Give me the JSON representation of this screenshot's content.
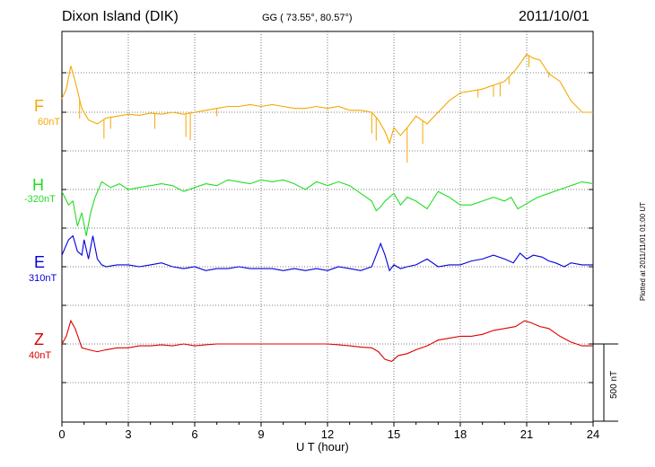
{
  "header": {
    "station": "Dixon Island (DIK)",
    "coords": "GG ( 73.55°,  80.57°)",
    "date": "2011/10/01"
  },
  "footer": {
    "plotted": "Plotted at 2011/11/01 01:00 UT",
    "scale_label": "500 nT"
  },
  "chart_data": {
    "type": "line",
    "xlabel": "U T (hour)",
    "xlim": [
      0,
      24
    ],
    "xticks": [
      "0",
      "3",
      "6",
      "9",
      "12",
      "15",
      "18",
      "21",
      "24"
    ],
    "grid": true,
    "scale_bar_nT": 500,
    "series": [
      {
        "name": "F",
        "baseline_label": "60nT",
        "color": "#f4a800",
        "points": [
          [
            0,
            35
          ],
          [
            0.2,
            60
          ],
          [
            0.4,
            120
          ],
          [
            0.6,
            80
          ],
          [
            0.9,
            10
          ],
          [
            1.2,
            -20
          ],
          [
            1.6,
            -30
          ],
          [
            2,
            -15
          ],
          [
            2.5,
            -10
          ],
          [
            3,
            -5
          ],
          [
            3.5,
            -8
          ],
          [
            4,
            -2
          ],
          [
            4.5,
            -5
          ],
          [
            5,
            0
          ],
          [
            5.5,
            -5
          ],
          [
            6,
            0
          ],
          [
            6.5,
            5
          ],
          [
            7,
            10
          ],
          [
            7.5,
            15
          ],
          [
            8,
            15
          ],
          [
            8.5,
            20
          ],
          [
            9,
            15
          ],
          [
            9.5,
            20
          ],
          [
            10,
            15
          ],
          [
            10.5,
            10
          ],
          [
            11,
            10
          ],
          [
            11.5,
            15
          ],
          [
            12,
            10
          ],
          [
            12.5,
            15
          ],
          [
            13,
            5
          ],
          [
            13.5,
            5
          ],
          [
            14,
            0
          ],
          [
            14.3,
            -20
          ],
          [
            14.6,
            -50
          ],
          [
            14.8,
            -80
          ],
          [
            15,
            -40
          ],
          [
            15.3,
            -60
          ],
          [
            15.6,
            -40
          ],
          [
            16,
            -10
          ],
          [
            16.5,
            -30
          ],
          [
            17,
            0
          ],
          [
            17.5,
            30
          ],
          [
            18,
            50
          ],
          [
            18.5,
            55
          ],
          [
            19,
            60
          ],
          [
            19.5,
            70
          ],
          [
            20,
            80
          ],
          [
            20.5,
            110
          ],
          [
            21,
            150
          ],
          [
            21.3,
            140
          ],
          [
            21.6,
            135
          ],
          [
            22,
            100
          ],
          [
            22.5,
            80
          ],
          [
            23,
            30
          ],
          [
            23.5,
            0
          ],
          [
            24,
            0
          ]
        ],
        "spikes": [
          [
            0.8,
            -50
          ],
          [
            1.9,
            -50
          ],
          [
            2.2,
            -30
          ],
          [
            4.2,
            -40
          ],
          [
            5.6,
            -60
          ],
          [
            5.8,
            -70
          ],
          [
            7.0,
            -20
          ],
          [
            14.0,
            -55
          ],
          [
            14.2,
            -60
          ],
          [
            15.6,
            -90
          ],
          [
            16.3,
            -60
          ],
          [
            18.8,
            -20
          ],
          [
            19.5,
            -30
          ],
          [
            19.8,
            -35
          ],
          [
            20.2,
            -20
          ],
          [
            21.1,
            -30
          ],
          [
            22.0,
            -10
          ]
        ]
      },
      {
        "name": "H",
        "baseline_label": "-320nT",
        "color": "#22dd22",
        "points": [
          [
            0,
            -5
          ],
          [
            0.3,
            -40
          ],
          [
            0.5,
            -30
          ],
          [
            0.7,
            -95
          ],
          [
            0.9,
            -60
          ],
          [
            1.1,
            -120
          ],
          [
            1.3,
            -60
          ],
          [
            1.5,
            -20
          ],
          [
            1.8,
            20
          ],
          [
            2.2,
            5
          ],
          [
            2.6,
            15
          ],
          [
            3,
            0
          ],
          [
            3.5,
            5
          ],
          [
            4,
            10
          ],
          [
            4.5,
            15
          ],
          [
            5,
            10
          ],
          [
            5.5,
            -5
          ],
          [
            6,
            5
          ],
          [
            6.5,
            15
          ],
          [
            7,
            10
          ],
          [
            7.5,
            25
          ],
          [
            8,
            20
          ],
          [
            8.5,
            15
          ],
          [
            9,
            25
          ],
          [
            9.5,
            20
          ],
          [
            10,
            25
          ],
          [
            10.5,
            15
          ],
          [
            11,
            0
          ],
          [
            11.5,
            20
          ],
          [
            12,
            10
          ],
          [
            12.5,
            20
          ],
          [
            13,
            10
          ],
          [
            13.5,
            -10
          ],
          [
            14,
            -30
          ],
          [
            14.2,
            -55
          ],
          [
            14.4,
            -45
          ],
          [
            14.6,
            -30
          ],
          [
            15,
            -10
          ],
          [
            15.3,
            -40
          ],
          [
            15.6,
            -20
          ],
          [
            16,
            -30
          ],
          [
            16.5,
            -50
          ],
          [
            17,
            -5
          ],
          [
            17.5,
            -20
          ],
          [
            18,
            -40
          ],
          [
            18.5,
            -40
          ],
          [
            19,
            -30
          ],
          [
            19.5,
            -20
          ],
          [
            20,
            -30
          ],
          [
            20.3,
            -20
          ],
          [
            20.6,
            -50
          ],
          [
            20.9,
            -40
          ],
          [
            21.2,
            -30
          ],
          [
            21.5,
            -20
          ],
          [
            22,
            -10
          ],
          [
            22.5,
            0
          ],
          [
            23,
            10
          ],
          [
            23.5,
            20
          ],
          [
            24,
            15
          ]
        ]
      },
      {
        "name": "E",
        "baseline_label": "310nT",
        "color": "#0000dd",
        "points": [
          [
            0,
            30
          ],
          [
            0.3,
            70
          ],
          [
            0.5,
            80
          ],
          [
            0.7,
            40
          ],
          [
            0.9,
            30
          ],
          [
            1.0,
            70
          ],
          [
            1.2,
            20
          ],
          [
            1.4,
            80
          ],
          [
            1.6,
            20
          ],
          [
            1.8,
            5
          ],
          [
            2,
            0
          ],
          [
            2.5,
            5
          ],
          [
            3,
            5
          ],
          [
            3.5,
            0
          ],
          [
            4,
            5
          ],
          [
            4.5,
            10
          ],
          [
            5,
            0
          ],
          [
            5.5,
            -5
          ],
          [
            6,
            0
          ],
          [
            6.5,
            -10
          ],
          [
            7,
            -5
          ],
          [
            7.5,
            -5
          ],
          [
            8,
            0
          ],
          [
            8.5,
            -5
          ],
          [
            9,
            -5
          ],
          [
            9.5,
            -5
          ],
          [
            10,
            -10
          ],
          [
            10.5,
            -5
          ],
          [
            11,
            -10
          ],
          [
            11.5,
            -5
          ],
          [
            12,
            -10
          ],
          [
            12.5,
            0
          ],
          [
            13,
            -5
          ],
          [
            13.5,
            -10
          ],
          [
            14,
            0
          ],
          [
            14.2,
            30
          ],
          [
            14.4,
            60
          ],
          [
            14.6,
            30
          ],
          [
            14.8,
            -10
          ],
          [
            15,
            5
          ],
          [
            15.3,
            -5
          ],
          [
            15.6,
            0
          ],
          [
            16,
            5
          ],
          [
            16.5,
            20
          ],
          [
            17,
            0
          ],
          [
            17.5,
            5
          ],
          [
            18,
            5
          ],
          [
            18.5,
            15
          ],
          [
            19,
            20
          ],
          [
            19.5,
            30
          ],
          [
            20,
            20
          ],
          [
            20.4,
            10
          ],
          [
            20.7,
            35
          ],
          [
            21,
            20
          ],
          [
            21.3,
            30
          ],
          [
            21.7,
            25
          ],
          [
            22,
            15
          ],
          [
            22.3,
            10
          ],
          [
            22.7,
            0
          ],
          [
            23,
            10
          ],
          [
            23.5,
            5
          ],
          [
            24,
            5
          ]
        ]
      },
      {
        "name": "Z",
        "baseline_label": "40nT",
        "color": "#dd0000",
        "points": [
          [
            0,
            0
          ],
          [
            0.2,
            20
          ],
          [
            0.4,
            60
          ],
          [
            0.6,
            40
          ],
          [
            0.9,
            -10
          ],
          [
            1.2,
            -15
          ],
          [
            1.6,
            -20
          ],
          [
            2,
            -15
          ],
          [
            2.5,
            -10
          ],
          [
            3,
            -10
          ],
          [
            3.5,
            -5
          ],
          [
            4,
            -5
          ],
          [
            4.5,
            -2
          ],
          [
            5,
            -5
          ],
          [
            5.5,
            0
          ],
          [
            6,
            -5
          ],
          [
            6.5,
            -2
          ],
          [
            7,
            0
          ],
          [
            7.5,
            0
          ],
          [
            8,
            0
          ],
          [
            8.5,
            0
          ],
          [
            9,
            0
          ],
          [
            9.5,
            0
          ],
          [
            10,
            0
          ],
          [
            10.5,
            0
          ],
          [
            11,
            0
          ],
          [
            11.5,
            0
          ],
          [
            12,
            0
          ],
          [
            12.5,
            -2
          ],
          [
            13,
            -5
          ],
          [
            13.5,
            -8
          ],
          [
            14,
            -10
          ],
          [
            14.3,
            -20
          ],
          [
            14.6,
            -40
          ],
          [
            14.9,
            -45
          ],
          [
            15.2,
            -30
          ],
          [
            15.6,
            -25
          ],
          [
            16,
            -15
          ],
          [
            16.5,
            -5
          ],
          [
            17,
            10
          ],
          [
            17.5,
            15
          ],
          [
            18,
            20
          ],
          [
            18.5,
            20
          ],
          [
            19,
            25
          ],
          [
            19.5,
            35
          ],
          [
            20,
            40
          ],
          [
            20.5,
            45
          ],
          [
            20.9,
            60
          ],
          [
            21.2,
            55
          ],
          [
            21.6,
            45
          ],
          [
            22,
            40
          ],
          [
            22.5,
            20
          ],
          [
            23,
            5
          ],
          [
            23.5,
            -5
          ],
          [
            24,
            -5
          ]
        ]
      }
    ]
  }
}
